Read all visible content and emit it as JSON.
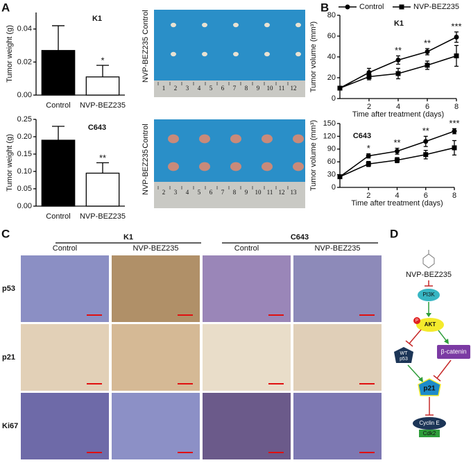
{
  "panels": [
    "A",
    "B",
    "C",
    "D"
  ],
  "chart_data": [
    {
      "type": "bar",
      "title": "K1",
      "y_label": "Tumor weight (g)",
      "categories": [
        "Control",
        "NVP-BEZ235"
      ],
      "series": [
        {
          "name": "Tumor weight",
          "colors": [
            "#000000",
            "#ffffff"
          ],
          "values": [
            0.027,
            0.011
          ],
          "errors": [
            0.015,
            0.007
          ]
        }
      ],
      "significance": [
        null,
        "*"
      ],
      "ylim": [
        0,
        0.05
      ],
      "yticks": [
        {
          "value": 0,
          "label": "0.00"
        },
        {
          "value": 0.02,
          "label": "0.02"
        },
        {
          "value": 0.04,
          "label": "0.04"
        }
      ]
    },
    {
      "type": "bar",
      "title": "C643",
      "y_label": "Tumor weight (g)",
      "categories": [
        "Control",
        "NVP-BEZ235"
      ],
      "series": [
        {
          "name": "Tumor weight",
          "colors": [
            "#000000",
            "#ffffff"
          ],
          "values": [
            0.19,
            0.095
          ],
          "errors": [
            0.04,
            0.03
          ]
        }
      ],
      "significance": [
        null,
        "**"
      ],
      "ylim": [
        0,
        0.25
      ],
      "yticks": [
        {
          "value": 0,
          "label": "0.00"
        },
        {
          "value": 0.05,
          "label": "0.05"
        },
        {
          "value": 0.1,
          "label": "0.10"
        },
        {
          "value": 0.15,
          "label": "0.15"
        },
        {
          "value": 0.2,
          "label": "0.20"
        },
        {
          "value": 0.25,
          "label": "0.25"
        }
      ]
    },
    {
      "type": "line",
      "title": "K1",
      "x_label": "Time after treatment (days)",
      "y_label": "Tumor volume (mm³)",
      "x": [
        0,
        2,
        4,
        6,
        8
      ],
      "legend": "top",
      "series": [
        {
          "name": "Control",
          "color": "#000000",
          "marker": "circle",
          "values": [
            10,
            25,
            37,
            45,
            59
          ],
          "errors": [
            1,
            4,
            4,
            3,
            5
          ]
        },
        {
          "name": "NVP-BEZ235",
          "color": "#000000",
          "marker": "square",
          "values": [
            10,
            21,
            24,
            32,
            41
          ],
          "errors": [
            1,
            3,
            5,
            4,
            10
          ]
        }
      ],
      "significance": [
        null,
        null,
        "**",
        "**",
        "***"
      ],
      "xlim": [
        0,
        8
      ],
      "xticks": [
        2,
        4,
        6,
        8
      ],
      "ylim": [
        0,
        80
      ],
      "yticks": [
        0,
        20,
        40,
        60,
        80
      ]
    },
    {
      "type": "line",
      "title": "C643",
      "x_label": "Time after treatment (days)",
      "y_label": "Tumor volume (mm³)",
      "x": [
        0,
        2,
        4,
        6,
        8
      ],
      "series": [
        {
          "name": "Control",
          "color": "#000000",
          "marker": "circle",
          "values": [
            25,
            74,
            85,
            108,
            132
          ],
          "errors": [
            2,
            5,
            7,
            12,
            6
          ]
        },
        {
          "name": "NVP-BEZ235",
          "color": "#000000",
          "marker": "square",
          "values": [
            25,
            55,
            64,
            77,
            93
          ],
          "errors": [
            2,
            6,
            6,
            10,
            17
          ]
        }
      ],
      "significance": [
        null,
        "*",
        "**",
        "**",
        "***"
      ],
      "xlim": [
        0,
        8
      ],
      "xticks": [
        2,
        4,
        6,
        8
      ],
      "ylim": [
        0,
        150
      ],
      "yticks": [
        0,
        30,
        60,
        90,
        120,
        150
      ]
    }
  ],
  "photos": [
    {
      "rows": [
        "Control",
        "NVP-BEZ235"
      ],
      "ruler": [
        1,
        2,
        3,
        4,
        5,
        6,
        7,
        8,
        9,
        10,
        11,
        12
      ]
    },
    {
      "rows": [
        "Control",
        "NVP-BEZ235"
      ],
      "ruler": [
        2,
        3,
        4,
        5,
        6,
        7,
        8,
        9,
        10,
        11,
        12,
        13
      ]
    }
  ],
  "ihc": {
    "groups": [
      "K1",
      "C643"
    ],
    "columns": [
      "Control",
      "NVP-BEZ235",
      "Control",
      "NVP-BEZ235"
    ],
    "rows": [
      "p53",
      "p21",
      "Ki67"
    ]
  },
  "diagram": {
    "nodes": [
      "NVP-BEZ235",
      "PI3K",
      "AKT",
      "P",
      "WT",
      "p53",
      "β-catenin",
      "p21",
      "Cyclin E",
      "Cdk2"
    ]
  }
}
